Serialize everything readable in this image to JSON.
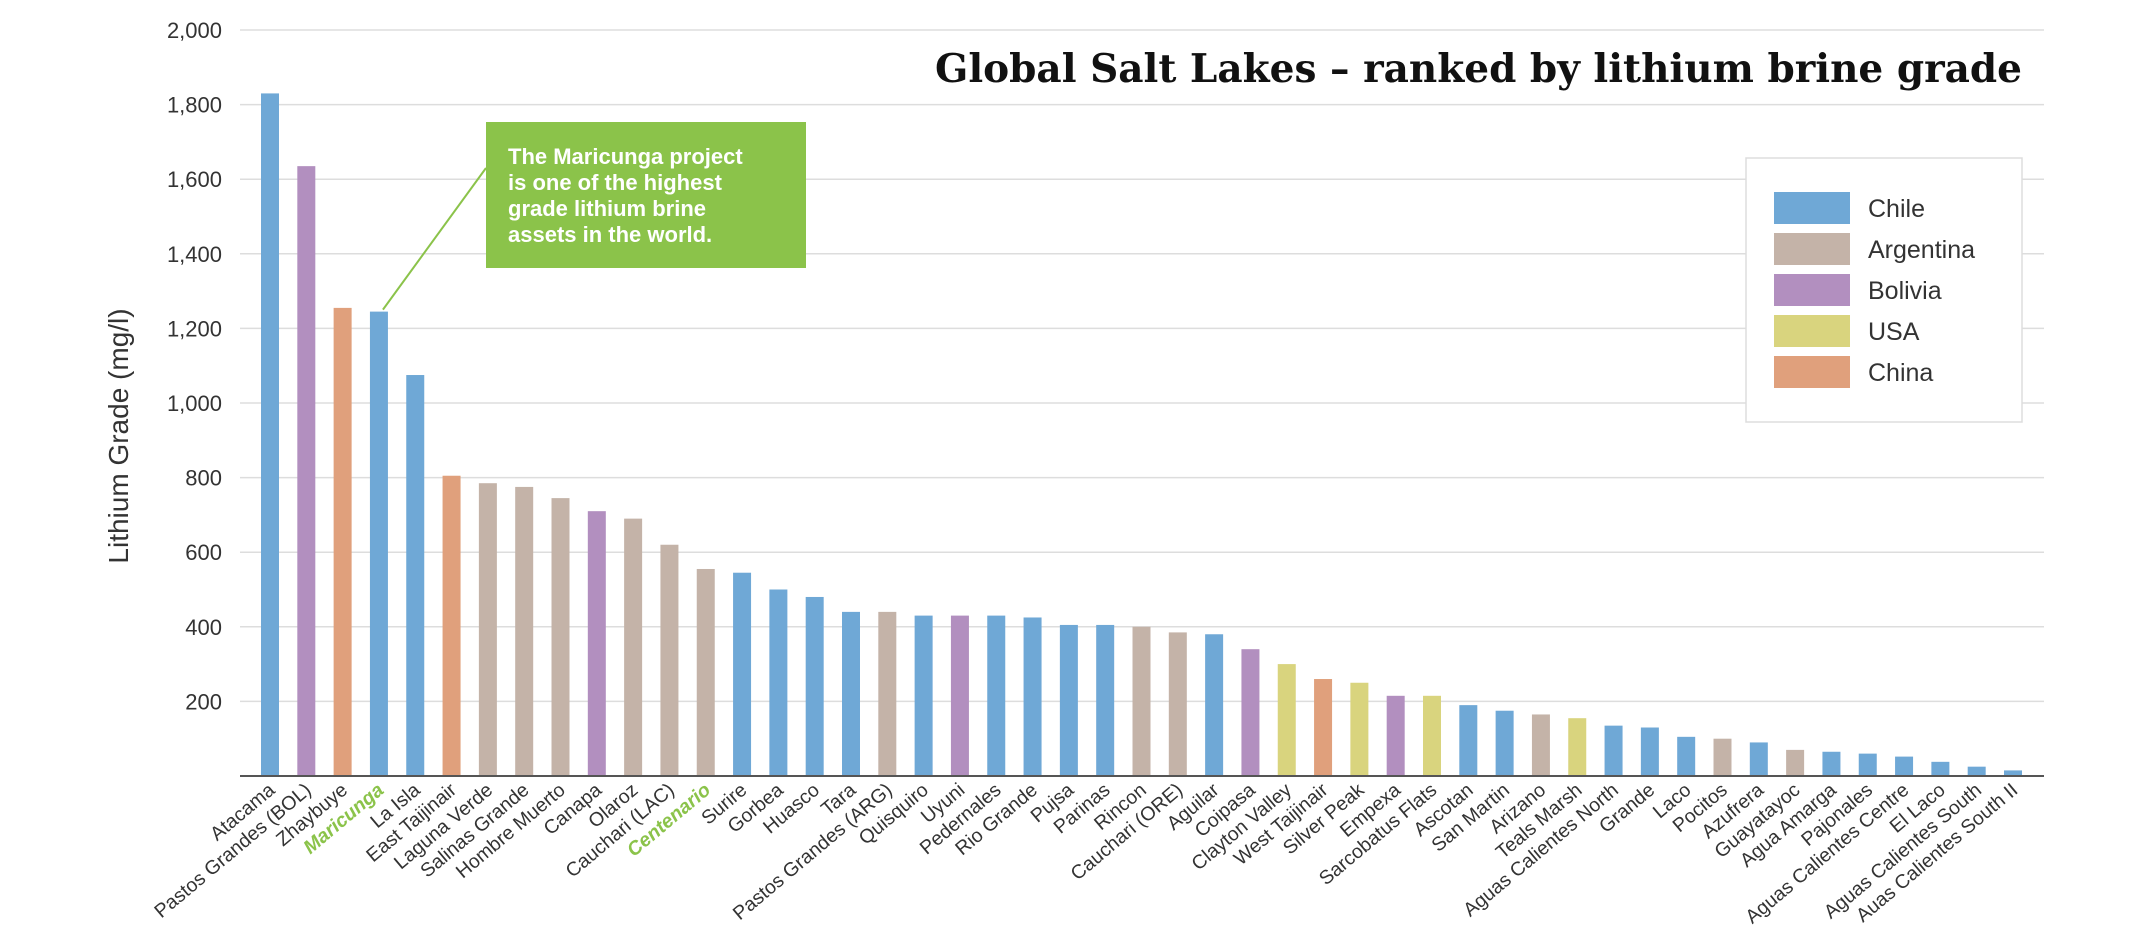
{
  "chart_data": {
    "type": "bar",
    "title": "Global Salt Lakes – ranked by lithium brine grade",
    "ylabel": "Lithium Grade (mg/l)",
    "xlabel": "",
    "ylim": [
      0,
      2000
    ],
    "yticks": [
      "200",
      "400",
      "600",
      "800",
      "1,000",
      "1,200",
      "1,400",
      "1,600",
      "1,800",
      "2,000"
    ],
    "ytick_values": [
      200,
      400,
      600,
      800,
      1000,
      1200,
      1400,
      1600,
      1800,
      2000
    ],
    "grid": "horizontal",
    "legend_placement": "top-right",
    "legend": [
      {
        "name": "Chile",
        "color": "#6fa8d6"
      },
      {
        "name": "Argentina",
        "color": "#c4b3a8"
      },
      {
        "name": "Bolivia",
        "color": "#b28fbf"
      },
      {
        "name": "USA",
        "color": "#d9d47e"
      },
      {
        "name": "China",
        "color": "#e0a07c"
      }
    ],
    "highlighted_categories": [
      "Maricunga",
      "Centenario"
    ],
    "highlight_color": "#8bc34a",
    "bars": [
      {
        "category": "Atacama",
        "value": 1830,
        "country": "Chile"
      },
      {
        "category": "Pastos Grandes (BOL)",
        "value": 1635,
        "country": "Bolivia"
      },
      {
        "category": "Zhaybuye",
        "value": 1255,
        "country": "China"
      },
      {
        "category": "Maricunga",
        "value": 1245,
        "country": "Chile"
      },
      {
        "category": "La Isla",
        "value": 1075,
        "country": "Chile"
      },
      {
        "category": "East Taijinair",
        "value": 805,
        "country": "China"
      },
      {
        "category": "Laguna Verde",
        "value": 785,
        "country": "Argentina"
      },
      {
        "category": "Salinas Grande",
        "value": 775,
        "country": "Argentina"
      },
      {
        "category": "Hombre Muerto",
        "value": 745,
        "country": "Argentina"
      },
      {
        "category": "Canapa",
        "value": 710,
        "country": "Bolivia"
      },
      {
        "category": "Olaroz",
        "value": 690,
        "country": "Argentina"
      },
      {
        "category": "Cauchari (LAC)",
        "value": 620,
        "country": "Argentina"
      },
      {
        "category": "Centenario",
        "value": 555,
        "country": "Argentina"
      },
      {
        "category": "Surire",
        "value": 545,
        "country": "Chile"
      },
      {
        "category": "Gorbea",
        "value": 500,
        "country": "Chile"
      },
      {
        "category": "Huasco",
        "value": 480,
        "country": "Chile"
      },
      {
        "category": "Tara",
        "value": 440,
        "country": "Chile"
      },
      {
        "category": "Pastos Grandes (ARG)",
        "value": 440,
        "country": "Argentina"
      },
      {
        "category": "Quisquiro",
        "value": 430,
        "country": "Chile"
      },
      {
        "category": "Uyuni",
        "value": 430,
        "country": "Bolivia"
      },
      {
        "category": "Pedernales",
        "value": 430,
        "country": "Chile"
      },
      {
        "category": "Rio Grande",
        "value": 425,
        "country": "Chile"
      },
      {
        "category": "Pujsa",
        "value": 405,
        "country": "Chile"
      },
      {
        "category": "Parinas",
        "value": 405,
        "country": "Chile"
      },
      {
        "category": "Rincon",
        "value": 400,
        "country": "Argentina"
      },
      {
        "category": "Cauchari (ORE)",
        "value": 385,
        "country": "Argentina"
      },
      {
        "category": "Aguilar",
        "value": 380,
        "country": "Chile"
      },
      {
        "category": "Coipasa",
        "value": 340,
        "country": "Bolivia"
      },
      {
        "category": "Clayton Valley",
        "value": 300,
        "country": "USA"
      },
      {
        "category": "West Taijinair",
        "value": 260,
        "country": "China"
      },
      {
        "category": "Silver Peak",
        "value": 250,
        "country": "USA"
      },
      {
        "category": "Empexa",
        "value": 215,
        "country": "Bolivia"
      },
      {
        "category": "Sarcobatus Flats",
        "value": 215,
        "country": "USA"
      },
      {
        "category": "Ascotan",
        "value": 190,
        "country": "Chile"
      },
      {
        "category": "San Martin",
        "value": 175,
        "country": "Chile"
      },
      {
        "category": "Arizano",
        "value": 165,
        "country": "Argentina"
      },
      {
        "category": "Teals Marsh",
        "value": 155,
        "country": "USA"
      },
      {
        "category": "Aguas Calientes North",
        "value": 135,
        "country": "Chile"
      },
      {
        "category": "Grande",
        "value": 130,
        "country": "Chile"
      },
      {
        "category": "Laco",
        "value": 105,
        "country": "Chile"
      },
      {
        "category": "Pocitos",
        "value": 100,
        "country": "Argentina"
      },
      {
        "category": "Azufrera",
        "value": 90,
        "country": "Chile"
      },
      {
        "category": "Guayatayoc",
        "value": 70,
        "country": "Argentina"
      },
      {
        "category": "Agua Amarga",
        "value": 65,
        "country": "Chile"
      },
      {
        "category": "Pajonales",
        "value": 60,
        "country": "Chile"
      },
      {
        "category": "Aguas Calientes Centre",
        "value": 52,
        "country": "Chile"
      },
      {
        "category": "El Laco",
        "value": 38,
        "country": "Chile"
      },
      {
        "category": "Aguas Calientes South",
        "value": 25,
        "country": "Chile"
      },
      {
        "category": "Auas Calientes South II",
        "value": 15,
        "country": "Chile"
      }
    ],
    "callout": {
      "lines": [
        "The Maricunga project",
        "is one of the highest",
        "grade lithium brine",
        "assets in the world."
      ],
      "target_category": "Maricunga",
      "color": "#8bc34a"
    }
  }
}
